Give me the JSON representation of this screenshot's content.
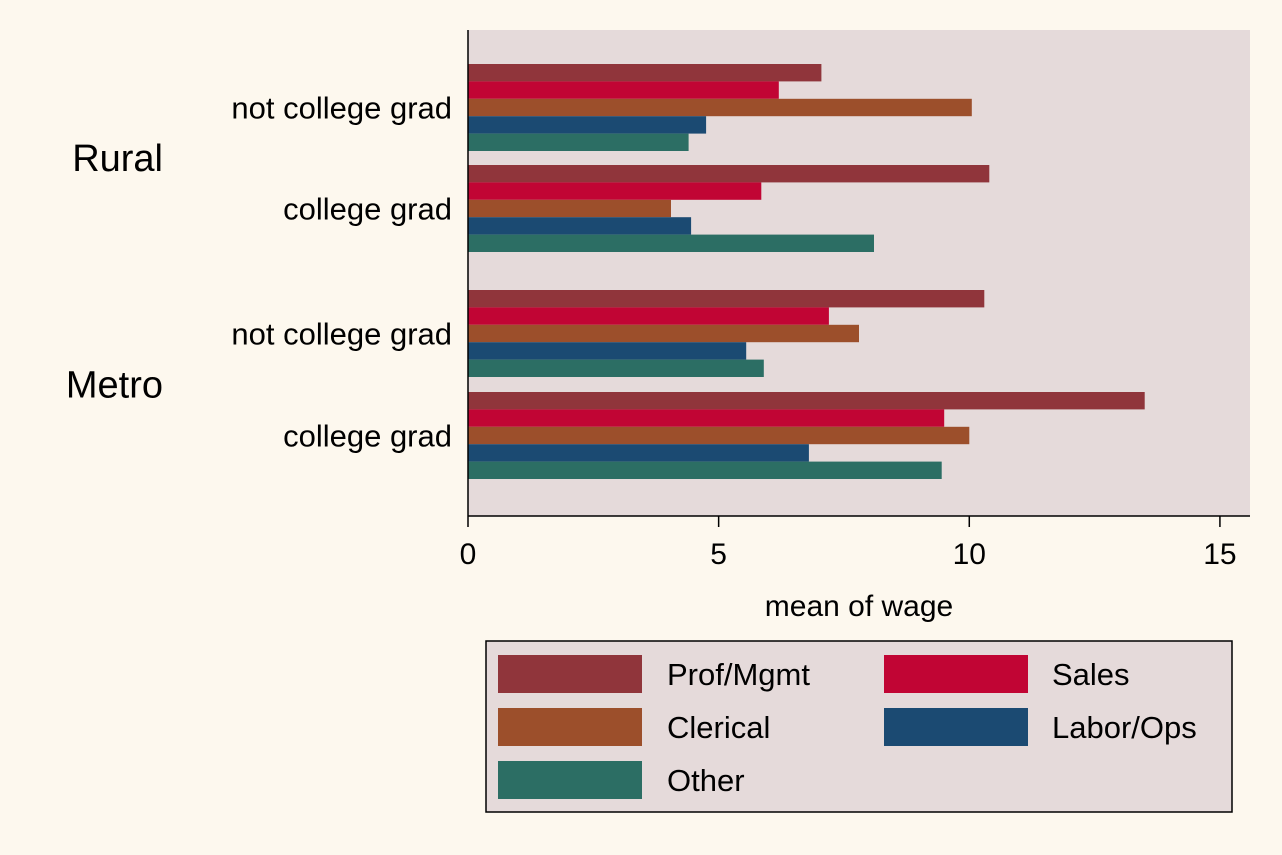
{
  "colors": {
    "page_background": "#fdf8ee",
    "plot_background": "#e5dada",
    "legend_background": "#e5dada",
    "axis": "#000000"
  },
  "chart_data": {
    "type": "bar",
    "orientation": "horizontal",
    "title": "",
    "xlabel": "mean of wage",
    "xlim": [
      0,
      15.6
    ],
    "xticks": [
      0,
      5,
      10,
      15
    ],
    "grid": false,
    "legend_position": "bottom",
    "groups": [
      {
        "label": "Rural",
        "subgroups": [
          {
            "label": "not college grad",
            "values": [
              7.05,
              6.2,
              10.05,
              4.75,
              4.4
            ]
          },
          {
            "label": "college grad",
            "values": [
              10.4,
              5.85,
              4.05,
              4.45,
              8.1
            ]
          }
        ]
      },
      {
        "label": "Metro",
        "subgroups": [
          {
            "label": "not college grad",
            "values": [
              10.3,
              7.2,
              7.8,
              5.55,
              5.9
            ]
          },
          {
            "label": "college grad",
            "values": [
              13.5,
              9.5,
              10.0,
              6.8,
              9.45
            ]
          }
        ]
      }
    ],
    "series": [
      {
        "name": "Prof/Mgmt",
        "color": "#90353b"
      },
      {
        "name": "Sales",
        "color": "#c10534"
      },
      {
        "name": "Clerical",
        "color": "#9c4f2b"
      },
      {
        "name": "Labor/Ops",
        "color": "#1b4a72"
      },
      {
        "name": "Other",
        "color": "#2c6e64"
      }
    ]
  }
}
